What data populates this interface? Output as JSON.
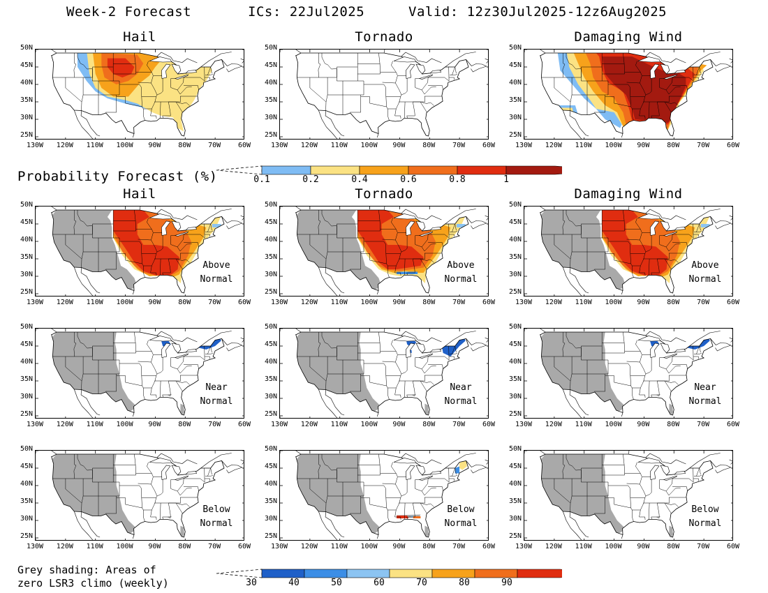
{
  "header": {
    "title": "Week-2 Forecast",
    "ics": "ICs: 22Jul2025",
    "valid": "Valid: 12z30Jul2025-12z6Aug2025"
  },
  "columns": [
    "Hail",
    "Tornado",
    "Damaging Wind"
  ],
  "section2_title": "Probability Forecast (%)",
  "row_annotations": {
    "above": [
      "Above",
      "Normal"
    ],
    "near": [
      "Near",
      "Normal"
    ],
    "below": [
      "Below",
      "Normal"
    ]
  },
  "axes": {
    "lat_labels": [
      "50N",
      "45N",
      "40N",
      "35N",
      "30N",
      "25N"
    ],
    "lon_labels": [
      "130W",
      "120W",
      "110W",
      "100W",
      "90W",
      "80W",
      "70W",
      "60W"
    ]
  },
  "colorbar_prob": {
    "labels": [
      "0.1",
      "0.2",
      "0.4",
      "0.6",
      "0.8",
      "1"
    ],
    "colors": [
      "#7fbcf4",
      "#fbe283",
      "#f7a21b",
      "#f06e1c",
      "#e02d10",
      "#a31a10"
    ]
  },
  "colorbar_pct": {
    "labels": [
      "30",
      "40",
      "50",
      "60",
      "70",
      "80",
      "90"
    ],
    "colors": [
      "#1f60c8",
      "#3c8ee6",
      "#8cc4f2",
      "#fbe283",
      "#f7a21b",
      "#f06e1c",
      "#e02d10"
    ]
  },
  "footnote": [
    "Grey shading: Areas of",
    "zero LSR3 climo (weekly)"
  ],
  "colors": {
    "grey": "#a9a9a9",
    "blue_dark": "#1f60c8"
  }
}
